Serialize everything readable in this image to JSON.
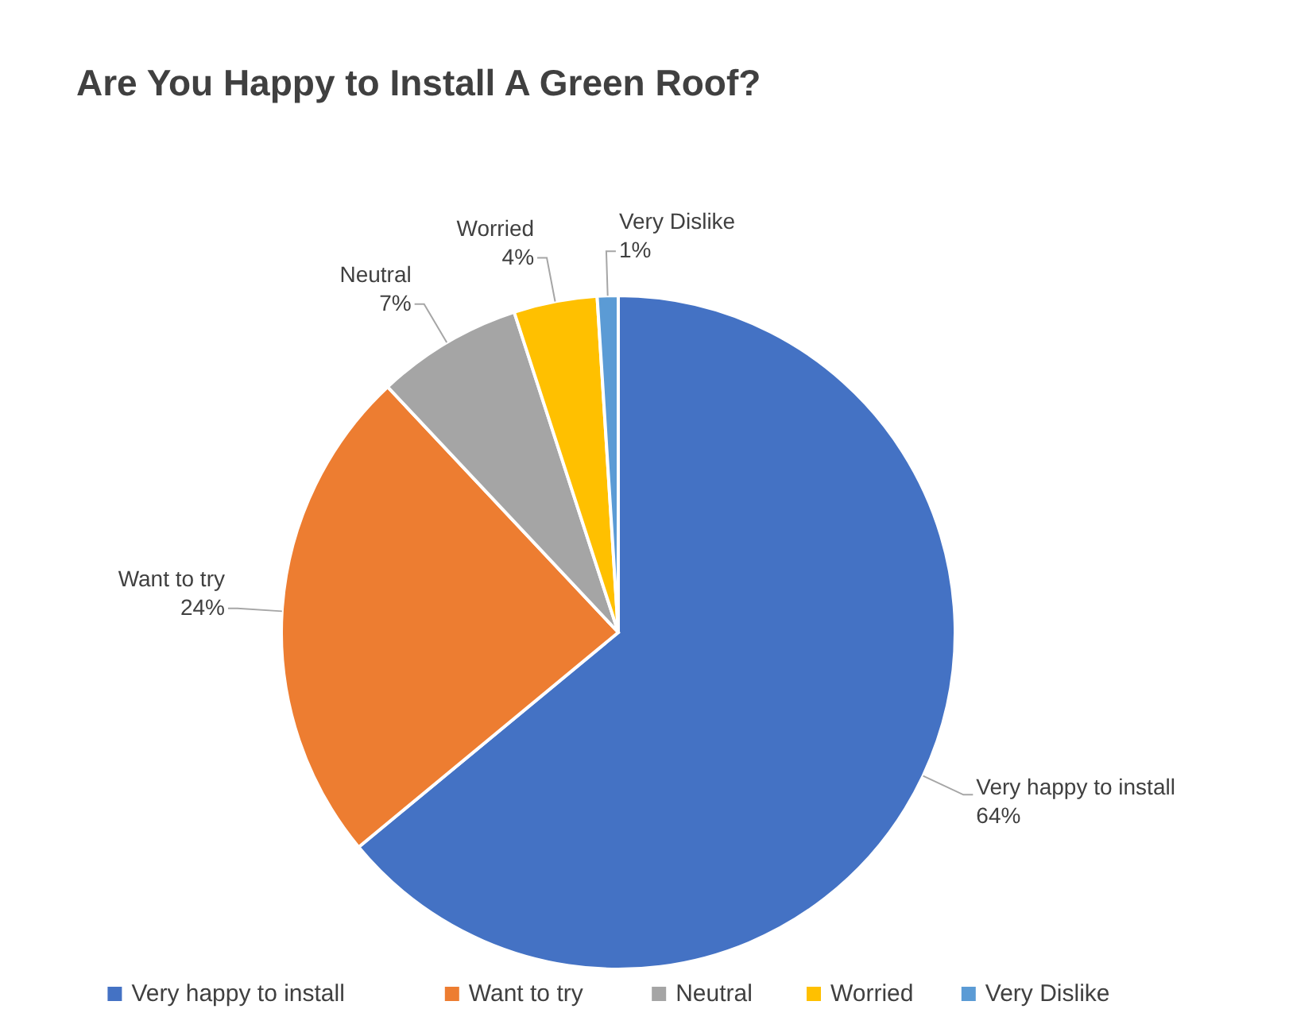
{
  "chart_data": {
    "type": "pie",
    "title": "Are You Happy to Install A Green Roof?",
    "categories": [
      "Very happy to install",
      "Want to try",
      "Neutral",
      "Worried",
      "Very Dislike"
    ],
    "values": [
      64,
      24,
      7,
      4,
      1
    ],
    "value_labels": [
      "64%",
      "24%",
      "7%",
      "4%",
      "1%"
    ],
    "colors": [
      "#4472c4",
      "#ed7d31",
      "#a5a5a5",
      "#ffc000",
      "#5b9bd5"
    ],
    "legend": "bottom"
  }
}
